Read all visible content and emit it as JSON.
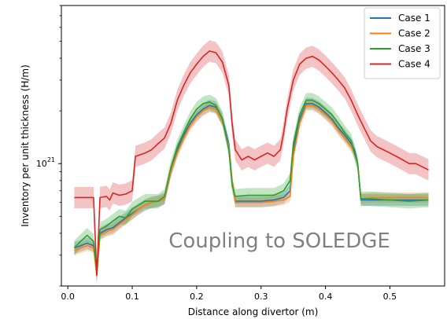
{
  "chart_data": {
    "type": "line",
    "xlabel": "Distance along divertor (m)",
    "ylabel": "Inventory per unit thickness (H/m)",
    "xlim": [
      -0.01,
      0.585
    ],
    "ylim": [
      2e+20,
      8e+21
    ],
    "yscale": "log",
    "xticks": [
      0.0,
      0.1,
      0.2,
      0.3,
      0.4,
      0.5
    ],
    "xtick_labels": [
      "0.0",
      "0.1",
      "0.2",
      "0.3",
      "0.4",
      "0.5"
    ],
    "yticks_major": [
      1e+21
    ],
    "ytick_label_base": "10",
    "ytick_label_exp": "21",
    "legend_position": "top-right",
    "annotation": "Coupling to SOLEDGE",
    "grid": false,
    "series": [
      {
        "name": "Case 1",
        "color": "#1f77b4",
        "band": 0.08,
        "points": [
          [
            0.01,
            3.3e+20
          ],
          [
            0.02,
            3.4e+20
          ],
          [
            0.03,
            3.5e+20
          ],
          [
            0.04,
            3.4e+20
          ],
          [
            0.045,
            2.3e+20
          ],
          [
            0.05,
            4e+20
          ],
          [
            0.06,
            4.2e+20
          ],
          [
            0.07,
            4.3e+20
          ],
          [
            0.08,
            4.6e+20
          ],
          [
            0.09,
            4.9e+20
          ],
          [
            0.1,
            5.2e+20
          ],
          [
            0.11,
            5.5e+20
          ],
          [
            0.12,
            5.8e+20
          ],
          [
            0.13,
            6e+20
          ],
          [
            0.14,
            6.1e+20
          ],
          [
            0.15,
            6.3e+20
          ],
          [
            0.16,
            9e+20
          ],
          [
            0.17,
            1.2e+21
          ],
          [
            0.18,
            1.45e+21
          ],
          [
            0.19,
            1.7e+21
          ],
          [
            0.2,
            1.9e+21
          ],
          [
            0.21,
            2.05e+21
          ],
          [
            0.22,
            2.15e+21
          ],
          [
            0.23,
            2.1e+21
          ],
          [
            0.24,
            1.8e+21
          ],
          [
            0.25,
            1.3e+21
          ],
          [
            0.255,
            8e+20
          ],
          [
            0.26,
            6.1e+20
          ],
          [
            0.28,
            6.1e+20
          ],
          [
            0.3,
            6.1e+20
          ],
          [
            0.32,
            6.2e+20
          ],
          [
            0.335,
            6.4e+20
          ],
          [
            0.345,
            7e+20
          ],
          [
            0.35,
            1.2e+21
          ],
          [
            0.36,
            1.8e+21
          ],
          [
            0.37,
            2.2e+21
          ],
          [
            0.38,
            2.2e+21
          ],
          [
            0.39,
            2.1e+21
          ],
          [
            0.4,
            1.95e+21
          ],
          [
            0.41,
            1.8e+21
          ],
          [
            0.42,
            1.6e+21
          ],
          [
            0.43,
            1.45e+21
          ],
          [
            0.44,
            1.3e+21
          ],
          [
            0.445,
            1.2e+21
          ],
          [
            0.45,
            1e+21
          ],
          [
            0.455,
            6.2e+20
          ],
          [
            0.47,
            6.2e+20
          ],
          [
            0.5,
            6.2e+20
          ],
          [
            0.53,
            6.2e+20
          ],
          [
            0.56,
            6.2e+20
          ]
        ]
      },
      {
        "name": "Case 2",
        "color": "#ff7f0e",
        "band": 0.07,
        "points": [
          [
            0.01,
            3.2e+20
          ],
          [
            0.02,
            3.3e+20
          ],
          [
            0.03,
            3.4e+20
          ],
          [
            0.04,
            3.3e+20
          ],
          [
            0.045,
            2.3e+20
          ],
          [
            0.05,
            3.9e+20
          ],
          [
            0.06,
            4.1e+20
          ],
          [
            0.07,
            4.2e+20
          ],
          [
            0.08,
            4.5e+20
          ],
          [
            0.09,
            4.8e+20
          ],
          [
            0.1,
            5.1e+20
          ],
          [
            0.11,
            5.5e+20
          ],
          [
            0.12,
            5.8e+20
          ],
          [
            0.13,
            6e+20
          ],
          [
            0.14,
            6.1e+20
          ],
          [
            0.15,
            6.3e+20
          ],
          [
            0.16,
            9e+20
          ],
          [
            0.17,
            1.15e+21
          ],
          [
            0.18,
            1.4e+21
          ],
          [
            0.19,
            1.65e+21
          ],
          [
            0.2,
            1.85e+21
          ],
          [
            0.21,
            2e+21
          ],
          [
            0.22,
            2.1e+21
          ],
          [
            0.23,
            2.05e+21
          ],
          [
            0.24,
            1.75e+21
          ],
          [
            0.25,
            1.25e+21
          ],
          [
            0.255,
            8e+20
          ],
          [
            0.26,
            6e+20
          ],
          [
            0.28,
            6e+20
          ],
          [
            0.3,
            6e+20
          ],
          [
            0.32,
            6.1e+20
          ],
          [
            0.335,
            6.2e+20
          ],
          [
            0.345,
            6.5e+20
          ],
          [
            0.35,
            1.1e+21
          ],
          [
            0.36,
            1.7e+21
          ],
          [
            0.37,
            2.15e+21
          ],
          [
            0.38,
            2.15e+21
          ],
          [
            0.39,
            2.05e+21
          ],
          [
            0.4,
            1.9e+21
          ],
          [
            0.41,
            1.75e+21
          ],
          [
            0.42,
            1.55e+21
          ],
          [
            0.43,
            1.4e+21
          ],
          [
            0.44,
            1.25e+21
          ],
          [
            0.445,
            1.15e+21
          ],
          [
            0.45,
            1e+21
          ],
          [
            0.455,
            6.3e+20
          ],
          [
            0.47,
            6.4e+20
          ],
          [
            0.5,
            6.4e+20
          ],
          [
            0.53,
            6.4e+20
          ],
          [
            0.56,
            6.4e+20
          ]
        ]
      },
      {
        "name": "Case 3",
        "color": "#2ca02c",
        "band": 0.1,
        "points": [
          [
            0.01,
            3.3e+20
          ],
          [
            0.02,
            3.6e+20
          ],
          [
            0.03,
            3.9e+20
          ],
          [
            0.04,
            3.6e+20
          ],
          [
            0.045,
            2.4e+20
          ],
          [
            0.05,
            4.2e+20
          ],
          [
            0.06,
            4.4e+20
          ],
          [
            0.07,
            4.7e+20
          ],
          [
            0.08,
            5e+20
          ],
          [
            0.09,
            4.9e+20
          ],
          [
            0.1,
            5.5e+20
          ],
          [
            0.11,
            5.8e+20
          ],
          [
            0.12,
            6.1e+20
          ],
          [
            0.13,
            6.1e+20
          ],
          [
            0.14,
            6.1e+20
          ],
          [
            0.15,
            6.5e+20
          ],
          [
            0.16,
            9.5e+20
          ],
          [
            0.17,
            1.25e+21
          ],
          [
            0.18,
            1.5e+21
          ],
          [
            0.19,
            1.8e+21
          ],
          [
            0.2,
            2.05e+21
          ],
          [
            0.21,
            2.2e+21
          ],
          [
            0.22,
            2.25e+21
          ],
          [
            0.23,
            2.15e+21
          ],
          [
            0.24,
            1.8e+21
          ],
          [
            0.25,
            1.2e+21
          ],
          [
            0.255,
            7.5e+20
          ],
          [
            0.26,
            6.5e+20
          ],
          [
            0.28,
            6.6e+20
          ],
          [
            0.3,
            6.6e+20
          ],
          [
            0.32,
            6.6e+20
          ],
          [
            0.335,
            7e+20
          ],
          [
            0.345,
            8e+20
          ],
          [
            0.35,
            1.3e+21
          ],
          [
            0.36,
            1.9e+21
          ],
          [
            0.37,
            2.3e+21
          ],
          [
            0.38,
            2.3e+21
          ],
          [
            0.39,
            2.2e+21
          ],
          [
            0.4,
            2.05e+21
          ],
          [
            0.41,
            1.9e+21
          ],
          [
            0.42,
            1.7e+21
          ],
          [
            0.43,
            1.5e+21
          ],
          [
            0.44,
            1.35e+21
          ],
          [
            0.445,
            1.15e+21
          ],
          [
            0.45,
            1e+21
          ],
          [
            0.455,
            6.3e+20
          ],
          [
            0.47,
            6.3e+20
          ],
          [
            0.5,
            6.2e+20
          ],
          [
            0.53,
            6.1e+20
          ],
          [
            0.56,
            6.2e+20
          ]
        ]
      },
      {
        "name": "Case 4",
        "color": "#d62728",
        "band": 0.15,
        "points": [
          [
            0.01,
            6.4e+20
          ],
          [
            0.03,
            6.4e+20
          ],
          [
            0.04,
            6.4e+20
          ],
          [
            0.045,
            2.3e+20
          ],
          [
            0.05,
            6.4e+20
          ],
          [
            0.06,
            6.5e+20
          ],
          [
            0.065,
            6.2e+20
          ],
          [
            0.07,
            6.8e+20
          ],
          [
            0.08,
            6.6e+20
          ],
          [
            0.09,
            6.7e+20
          ],
          [
            0.1,
            7e+20
          ],
          [
            0.105,
            1.1e+21
          ],
          [
            0.12,
            1.15e+21
          ],
          [
            0.13,
            1.2e+21
          ],
          [
            0.14,
            1.3e+21
          ],
          [
            0.15,
            1.4e+21
          ],
          [
            0.16,
            1.7e+21
          ],
          [
            0.17,
            2.3e+21
          ],
          [
            0.18,
            2.8e+21
          ],
          [
            0.19,
            3.3e+21
          ],
          [
            0.2,
            3.7e+21
          ],
          [
            0.21,
            4.1e+21
          ],
          [
            0.22,
            4.4e+21
          ],
          [
            0.23,
            4.3e+21
          ],
          [
            0.24,
            3.8e+21
          ],
          [
            0.25,
            2.8e+21
          ],
          [
            0.255,
            1.7e+21
          ],
          [
            0.26,
            1.2e+21
          ],
          [
            0.27,
            1.05e+21
          ],
          [
            0.28,
            1.1e+21
          ],
          [
            0.29,
            1.05e+21
          ],
          [
            0.3,
            1.1e+21
          ],
          [
            0.31,
            1.15e+21
          ],
          [
            0.32,
            1.1e+21
          ],
          [
            0.33,
            1.2e+21
          ],
          [
            0.335,
            1.5e+21
          ],
          [
            0.34,
            2e+21
          ],
          [
            0.35,
            3e+21
          ],
          [
            0.36,
            3.7e+21
          ],
          [
            0.37,
            4e+21
          ],
          [
            0.38,
            4.1e+21
          ],
          [
            0.39,
            3.9e+21
          ],
          [
            0.4,
            3.6e+21
          ],
          [
            0.41,
            3.3e+21
          ],
          [
            0.42,
            3e+21
          ],
          [
            0.43,
            2.7e+21
          ],
          [
            0.44,
            2.3e+21
          ],
          [
            0.45,
            1.9e+21
          ],
          [
            0.46,
            1.6e+21
          ],
          [
            0.47,
            1.35e+21
          ],
          [
            0.48,
            1.25e+21
          ],
          [
            0.49,
            1.2e+21
          ],
          [
            0.5,
            1.15e+21
          ],
          [
            0.51,
            1.1e+21
          ],
          [
            0.52,
            1.05e+21
          ],
          [
            0.53,
            1e+21
          ],
          [
            0.54,
            1e+21
          ],
          [
            0.55,
            9.6e+20
          ],
          [
            0.56,
            9.2e+20
          ]
        ]
      }
    ]
  }
}
